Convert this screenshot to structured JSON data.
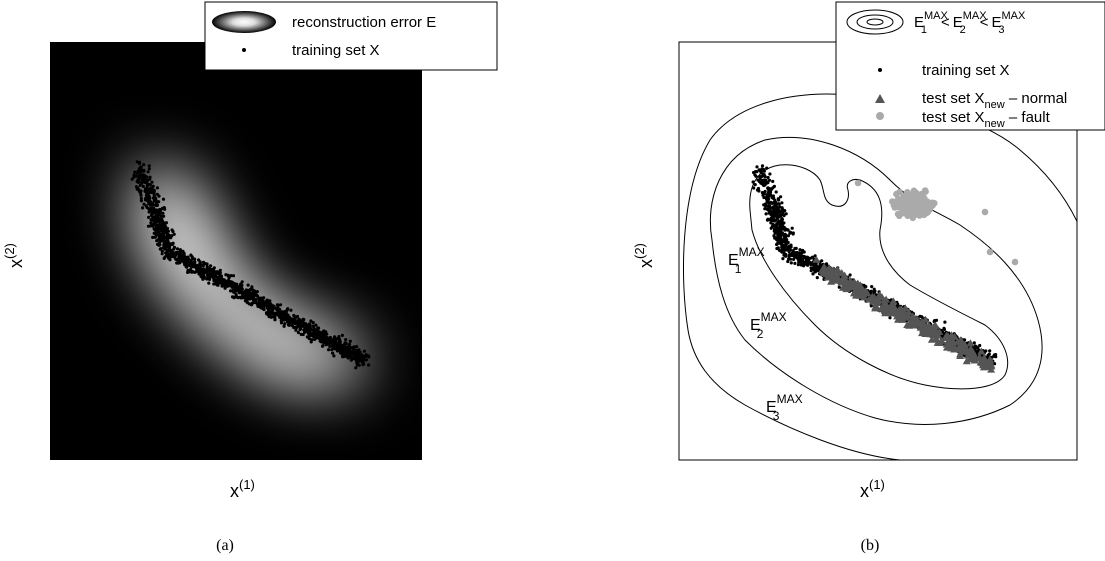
{
  "chart_data": [
    {
      "type": "scatter",
      "caption": "(a)",
      "background": "heatmap",
      "xlabel_base": "x",
      "xlabel_sup": "(1)",
      "ylabel_base": "x",
      "ylabel_sup": "(2)",
      "legend_position": "top-right",
      "series": [
        {
          "name_bg": "reconstruction error E"
        },
        {
          "name": "training set X",
          "color": "#000000",
          "marker": "dot"
        }
      ]
    },
    {
      "type": "scatter",
      "caption": "(b)",
      "background": "contours",
      "xlabel_base": "x",
      "xlabel_sup": "(1)",
      "ylabel_base": "x",
      "ylabel_sup": "(2)",
      "legend_position": "top-right",
      "contour_labels": [
        {
          "base": "E",
          "sup": "MAX",
          "sub": "1"
        },
        {
          "base": "E",
          "sup": "MAX",
          "sub": "2"
        },
        {
          "base": "E",
          "sup": "MAX",
          "sub": "3"
        }
      ],
      "legend_contour_text": {
        "e": "E",
        "sup": "MAX",
        "lt": "<",
        "s1": "1",
        "s2": "2",
        "s3": "3"
      },
      "series": [
        {
          "name": "training set X",
          "color": "#000000",
          "marker": "dot"
        },
        {
          "name_base": "test set X",
          "name_sub": "new",
          "name_suffix": " – normal",
          "color": "#555555",
          "marker": "triangle"
        },
        {
          "name_base": "test set X",
          "name_sub": "new",
          "name_suffix": " – fault",
          "color": "#aaaaaa",
          "marker": "circle"
        }
      ]
    }
  ]
}
